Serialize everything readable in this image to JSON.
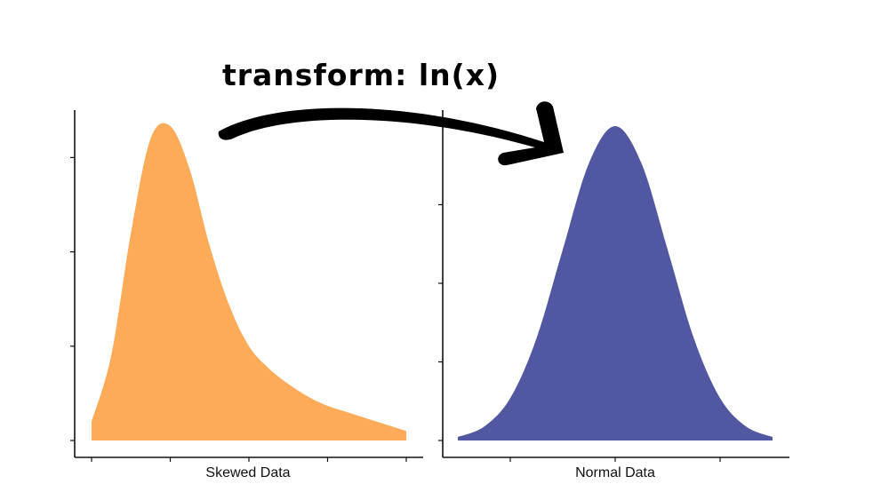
{
  "annotation": {
    "text": "transform: ln(x)"
  },
  "colors": {
    "skewed_fill": "#FDAB58",
    "normal_fill": "#5157A1",
    "axis": "#111111",
    "arrow": "#000000"
  },
  "chart_data": [
    {
      "type": "area",
      "xlabel": "Skewed Data",
      "ylabel": "",
      "title": "",
      "xlim": [
        0,
        8
      ],
      "ylim": [
        0,
        1
      ],
      "x_ticks": [
        0,
        2,
        4,
        6,
        8
      ],
      "y_ticks": [
        0,
        0.3,
        0.6,
        0.9
      ],
      "grid": false,
      "series": [
        {
          "x": [
            0,
            0.5,
            1,
            1.5,
            2,
            2.5,
            3,
            3.5,
            4,
            4.5,
            5,
            5.5,
            6,
            6.5,
            7,
            7.5,
            8
          ],
          "values": [
            0.06,
            0.27,
            0.66,
            0.96,
            1.0,
            0.86,
            0.62,
            0.43,
            0.3,
            0.23,
            0.18,
            0.14,
            0.11,
            0.09,
            0.07,
            0.05,
            0.03
          ]
        }
      ]
    },
    {
      "type": "area",
      "xlabel": "Normal Data",
      "ylabel": "",
      "title": "",
      "xlim": [
        -3,
        3
      ],
      "ylim": [
        0,
        1
      ],
      "x_ticks": [
        -2,
        0,
        2
      ],
      "y_ticks": [
        0,
        0.25,
        0.5,
        0.75,
        1.0
      ],
      "grid": false,
      "series": [
        {
          "x": [
            -3,
            -2.5,
            -2,
            -1.5,
            -1,
            -0.5,
            0,
            0.5,
            1,
            1.5,
            2,
            2.5,
            3
          ],
          "values": [
            0.011,
            0.044,
            0.135,
            0.325,
            0.607,
            0.882,
            1.0,
            0.882,
            0.607,
            0.325,
            0.135,
            0.044,
            0.011
          ]
        }
      ]
    }
  ]
}
